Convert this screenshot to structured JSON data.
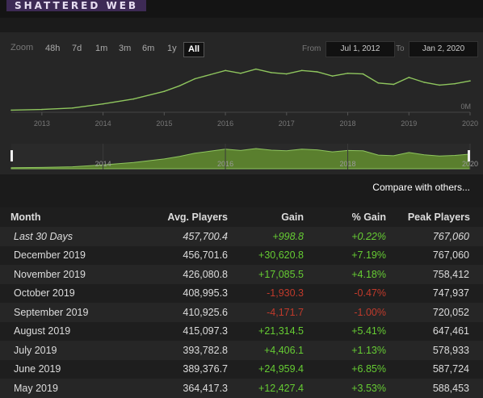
{
  "header": {
    "logo_text": "SHATTERED WEB"
  },
  "zoom": {
    "label": "Zoom",
    "buttons": [
      "48h",
      "7d",
      "1m",
      "3m",
      "6m",
      "1y",
      "All"
    ],
    "active": "All"
  },
  "range": {
    "from_label": "From",
    "from_value": "Jul 1, 2012",
    "to_label": "To",
    "to_value": "Jan 2, 2020"
  },
  "chart_data": {
    "type": "line",
    "x_ticks": [
      "2013",
      "2014",
      "2015",
      "2016",
      "2017",
      "2018",
      "2019",
      "2020"
    ],
    "navigator_ticks": [
      "2014",
      "2016",
      "2018",
      "2020"
    ],
    "y_ticks": [
      "0M"
    ],
    "line_color": "#8fc65e",
    "fill_color": "#5a7f2e",
    "series": [
      {
        "x": [
          "2012-07",
          "2013-01",
          "2013-07",
          "2014-01",
          "2014-07",
          "2015-01",
          "2015-04",
          "2015-07",
          "2015-10",
          "2016-01",
          "2016-04",
          "2016-07",
          "2016-10",
          "2017-01",
          "2017-04",
          "2017-07",
          "2017-10",
          "2018-01",
          "2018-04",
          "2018-07",
          "2018-10",
          "2019-01",
          "2019-04",
          "2019-07",
          "2019-10",
          "2020-01"
        ],
        "values": [
          0.03,
          0.04,
          0.06,
          0.12,
          0.19,
          0.3,
          0.38,
          0.48,
          0.54,
          0.6,
          0.56,
          0.62,
          0.57,
          0.55,
          0.6,
          0.58,
          0.52,
          0.56,
          0.55,
          0.42,
          0.4,
          0.5,
          0.43,
          0.39,
          0.41,
          0.45
        ]
      }
    ]
  },
  "compare_link": "Compare with others...",
  "table": {
    "columns": [
      "Month",
      "Avg. Players",
      "Gain",
      "% Gain",
      "Peak Players"
    ],
    "rows": [
      {
        "month": "Last 30 Days",
        "avg": "457,700.4",
        "gain": "+998.8",
        "pct": "+0.22%",
        "peak": "767,060",
        "dir": "pos",
        "italic": true
      },
      {
        "month": "December 2019",
        "avg": "456,701.6",
        "gain": "+30,620.8",
        "pct": "+7.19%",
        "peak": "767,060",
        "dir": "pos"
      },
      {
        "month": "November 2019",
        "avg": "426,080.8",
        "gain": "+17,085.5",
        "pct": "+4.18%",
        "peak": "758,412",
        "dir": "pos"
      },
      {
        "month": "October 2019",
        "avg": "408,995.3",
        "gain": "-1,930.3",
        "pct": "-0.47%",
        "peak": "747,937",
        "dir": "neg"
      },
      {
        "month": "September 2019",
        "avg": "410,925.6",
        "gain": "-4,171.7",
        "pct": "-1.00%",
        "peak": "720,052",
        "dir": "neg"
      },
      {
        "month": "August 2019",
        "avg": "415,097.3",
        "gain": "+21,314.5",
        "pct": "+5.41%",
        "peak": "647,461",
        "dir": "pos"
      },
      {
        "month": "July 2019",
        "avg": "393,782.8",
        "gain": "+4,406.1",
        "pct": "+1.13%",
        "peak": "578,933",
        "dir": "pos"
      },
      {
        "month": "June 2019",
        "avg": "389,376.7",
        "gain": "+24,959.4",
        "pct": "+6.85%",
        "peak": "587,724",
        "dir": "pos"
      },
      {
        "month": "May 2019",
        "avg": "364,417.3",
        "gain": "+12,427.4",
        "pct": "+3.53%",
        "peak": "588,453",
        "dir": "pos"
      }
    ]
  }
}
